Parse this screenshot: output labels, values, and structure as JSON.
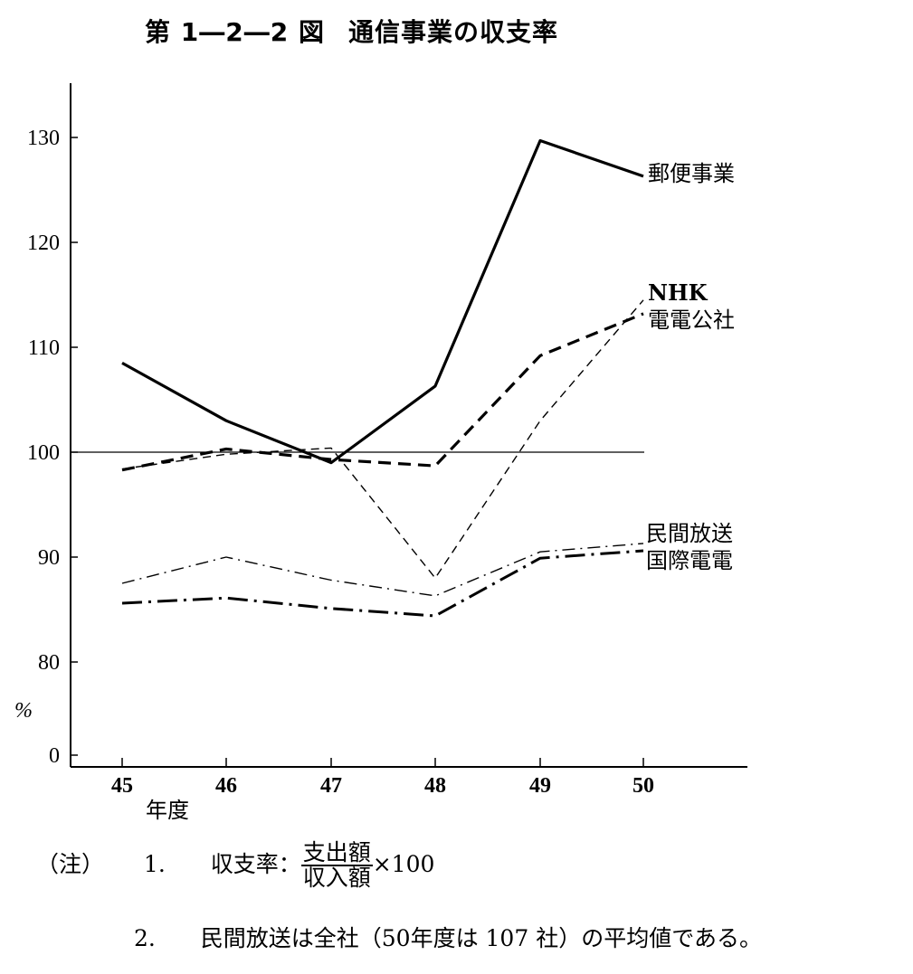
{
  "title": {
    "figure_no": "第 1―2―2 図",
    "caption": "通信事業の収支率"
  },
  "chart_data": {
    "type": "line",
    "x": [
      "45",
      "46",
      "47",
      "48",
      "49",
      "50"
    ],
    "xlabel": "年度",
    "ylabel": "%",
    "yticks": [
      "0",
      "80",
      "90",
      "100",
      "110",
      "120",
      "130"
    ],
    "ylim": [
      78,
      135
    ],
    "axis_break": true,
    "reference_line": 100,
    "series": [
      {
        "name": "郵便事業",
        "style": "solid-thick",
        "values": [
          108.5,
          103.0,
          99.0,
          106.3,
          129.7,
          126.3
        ]
      },
      {
        "name": "NHK",
        "style": "dashed-thin",
        "values": [
          98.4,
          99.8,
          100.4,
          88.0,
          103.0,
          114.5
        ]
      },
      {
        "name": "電電公社",
        "style": "dashed-thick",
        "values": [
          98.3,
          100.3,
          99.3,
          98.7,
          109.2,
          113.2
        ]
      },
      {
        "name": "民間放送",
        "style": "dash-dot-thin",
        "values": [
          87.5,
          90.0,
          87.8,
          86.3,
          90.5,
          91.3
        ]
      },
      {
        "name": "国際電電",
        "style": "dash-dot-thick",
        "values": [
          85.6,
          86.1,
          85.1,
          84.4,
          89.9,
          90.6
        ]
      }
    ]
  },
  "notes": {
    "marker": "（注）",
    "n1": "1.",
    "n1_label": "収支率：",
    "n1_numerator": "支出額",
    "n1_denominator": "収入額",
    "n1_multiplier": "×100",
    "n2": "2.",
    "n2_text": "民間放送は全社（50年度は 107 社）の平均値である。"
  }
}
